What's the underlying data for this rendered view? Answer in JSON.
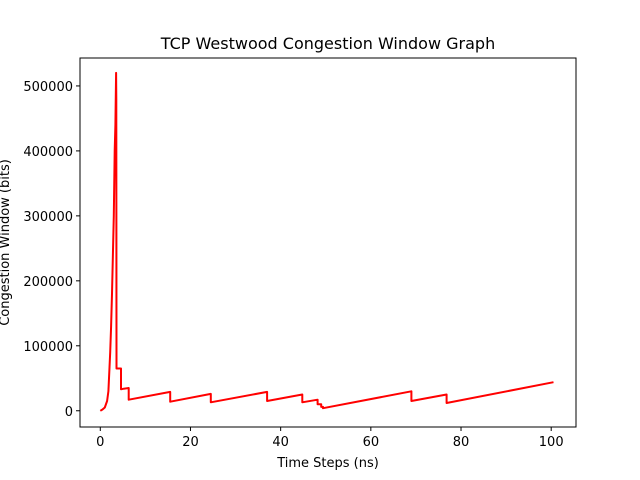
{
  "chart_data": {
    "type": "line",
    "title": "TCP Westwood Congestion Window Graph",
    "xlabel": "Time Steps (ns)",
    "ylabel": "Congestion Window (bits)",
    "xlim": [
      -4.5,
      105.5
    ],
    "ylim": [
      -25000,
      543000
    ],
    "xticks": [
      0,
      20,
      40,
      60,
      80,
      100
    ],
    "yticks": [
      0,
      100000,
      200000,
      300000,
      400000,
      500000
    ],
    "xtick_labels": [
      "0",
      "20",
      "40",
      "60",
      "80",
      "100"
    ],
    "ytick_labels": [
      "0",
      "100000",
      "200000",
      "300000",
      "400000",
      "500000"
    ],
    "grid": false,
    "series": [
      {
        "color": "#ff0000",
        "x": [
          0,
          0.5,
          1.0,
          1.5,
          1.8,
          2.0,
          2.2,
          2.4,
          2.6,
          2.8,
          3.0,
          3.2,
          3.35,
          3.5,
          3.55,
          3.6,
          4.2,
          4.6,
          4.6,
          5.2,
          6.3,
          6.3,
          15.5,
          15.5,
          24.5,
          24.5,
          37.0,
          37.0,
          44.8,
          44.8,
          48.2,
          48.2,
          49.0,
          49.0,
          49.4,
          49.4,
          69.0,
          69.0,
          76.8,
          76.8,
          100.5
        ],
        "y": [
          0,
          2000,
          5000,
          15000,
          30000,
          60000,
          90000,
          130000,
          180000,
          240000,
          300000,
          400000,
          440000,
          520000,
          480000,
          65000,
          65000,
          65000,
          33000,
          34000,
          35000,
          17000,
          29000,
          14000,
          26000,
          13000,
          29000,
          15000,
          25000,
          13000,
          17000,
          10000,
          10000,
          6000,
          6000,
          4000,
          30000,
          15000,
          25000,
          12000,
          44000
        ]
      }
    ]
  }
}
